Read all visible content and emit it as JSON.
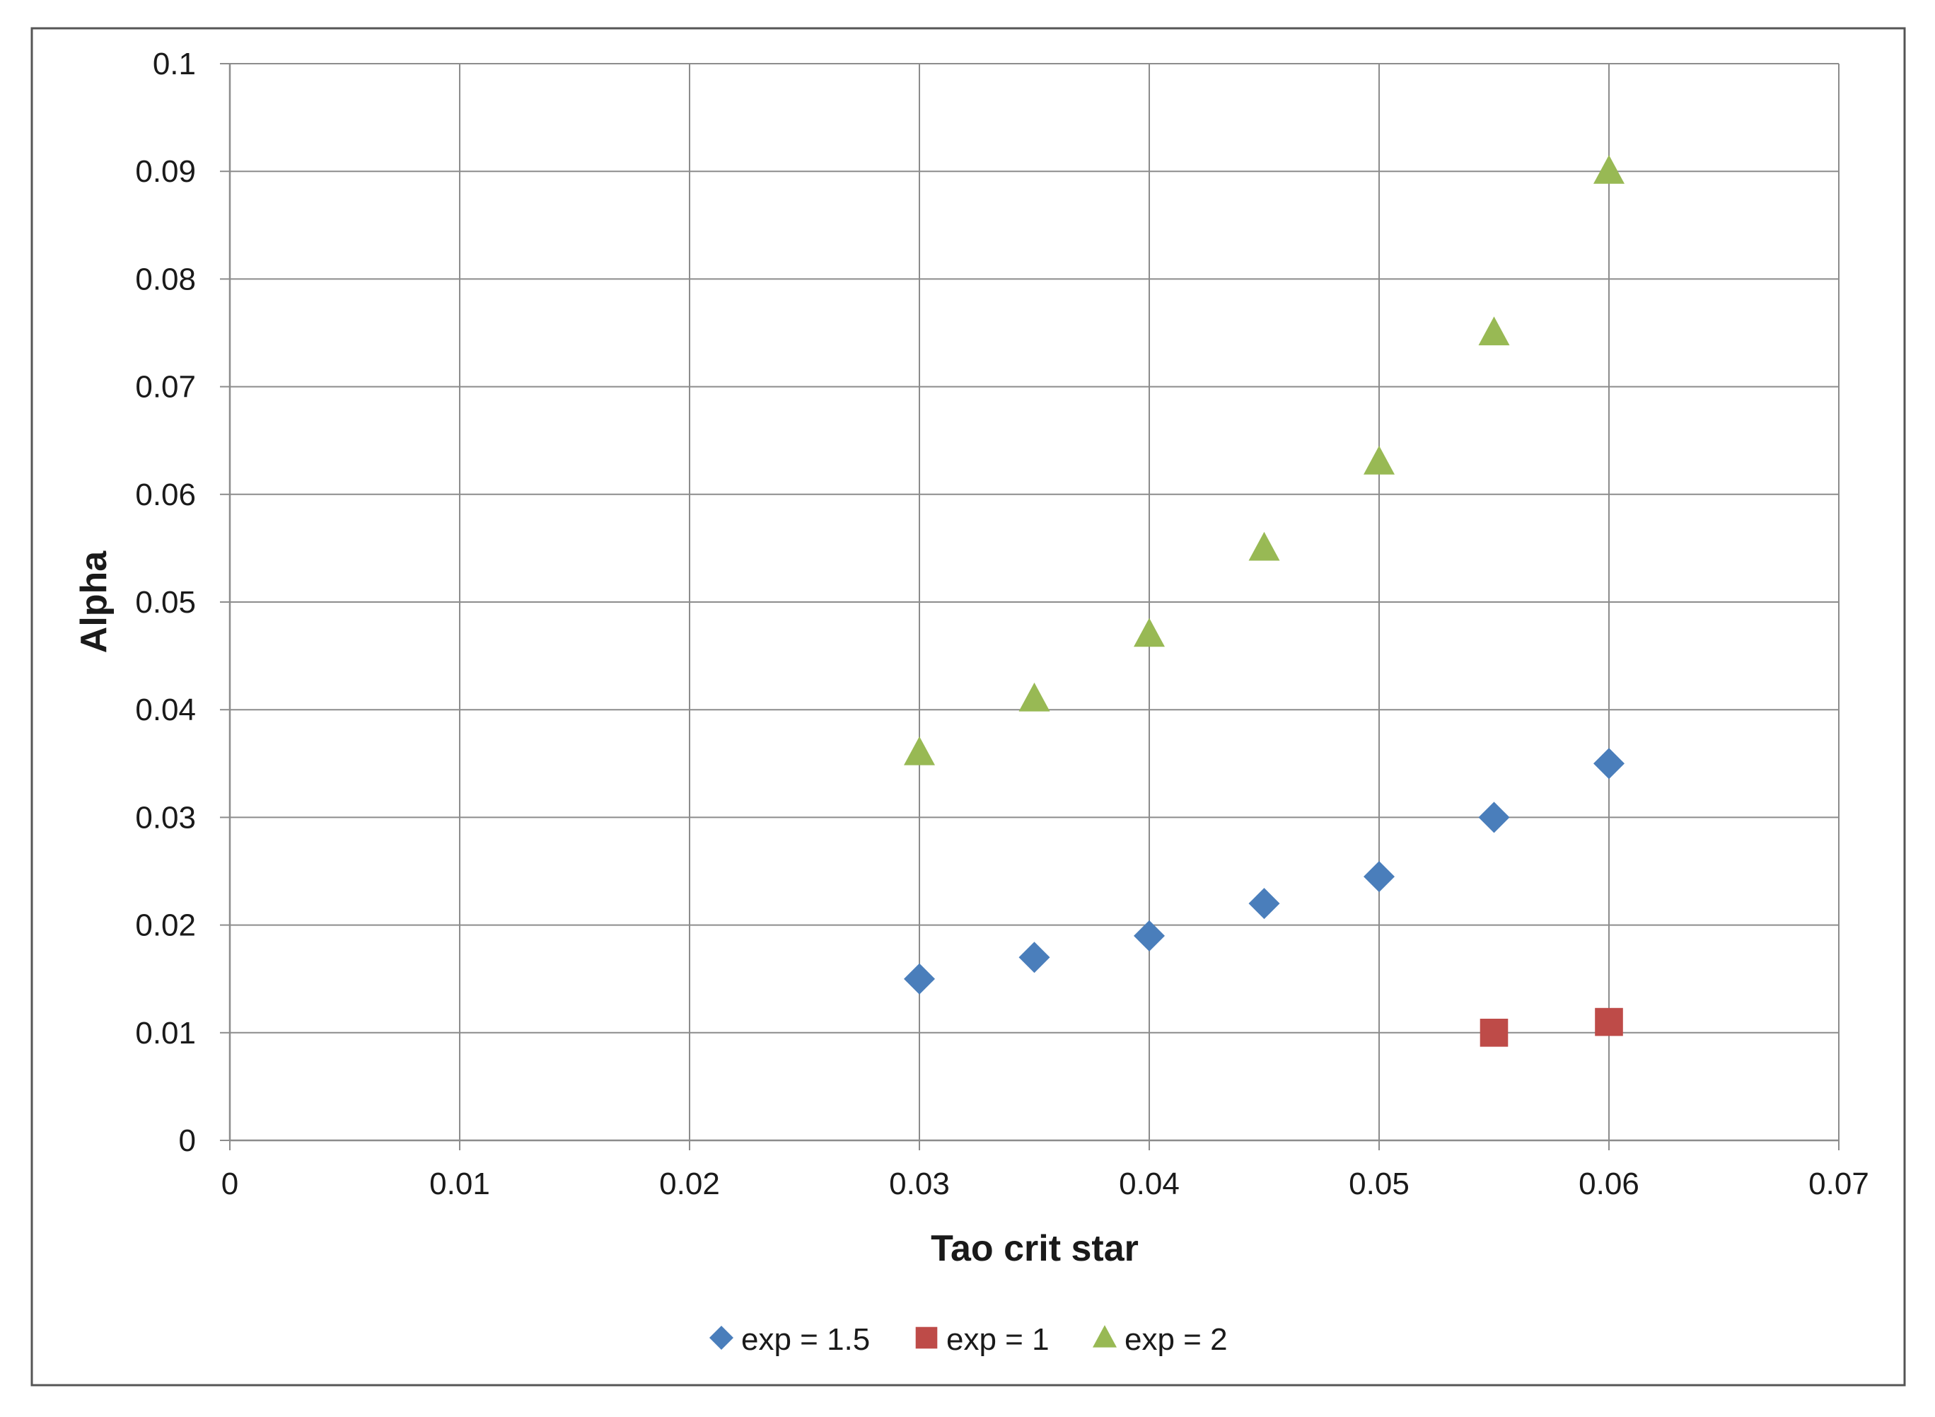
{
  "chart_data": {
    "type": "scatter",
    "title": "",
    "xlabel": "Tao crit star",
    "ylabel": "Alpha",
    "xlim": [
      0,
      0.07
    ],
    "ylim": [
      0,
      0.1
    ],
    "x_ticks": [
      "0",
      "0.01",
      "0.02",
      "0.03",
      "0.04",
      "0.05",
      "0.06",
      "0.07"
    ],
    "y_ticks": [
      "0",
      "0.01",
      "0.02",
      "0.03",
      "0.04",
      "0.05",
      "0.06",
      "0.07",
      "0.08",
      "0.09",
      "0.1"
    ],
    "grid": true,
    "legend_position": "bottom",
    "series": [
      {
        "name": "exp = 1.5",
        "marker": "diamond",
        "color": "#4a7ebb",
        "points": [
          [
            0.03,
            0.015
          ],
          [
            0.035,
            0.017
          ],
          [
            0.04,
            0.019
          ],
          [
            0.045,
            0.022
          ],
          [
            0.05,
            0.0245
          ],
          [
            0.055,
            0.03
          ],
          [
            0.06,
            0.035
          ]
        ]
      },
      {
        "name": "exp = 1",
        "marker": "square",
        "color": "#be4b48",
        "points": [
          [
            0.055,
            0.01
          ],
          [
            0.06,
            0.011
          ]
        ]
      },
      {
        "name": "exp = 2",
        "marker": "triangle",
        "color": "#98b954",
        "points": [
          [
            0.03,
            0.036
          ],
          [
            0.035,
            0.041
          ],
          [
            0.04,
            0.047
          ],
          [
            0.045,
            0.055
          ],
          [
            0.05,
            0.063
          ],
          [
            0.055,
            0.075
          ],
          [
            0.06,
            0.09
          ]
        ]
      }
    ]
  }
}
